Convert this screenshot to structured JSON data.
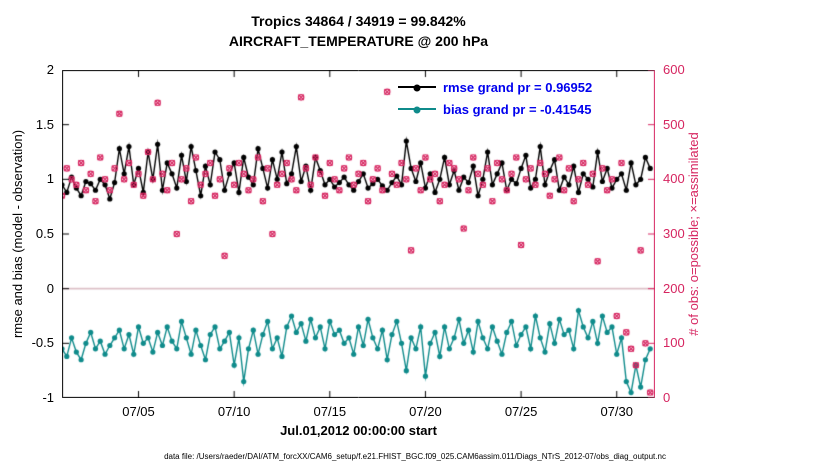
{
  "title": {
    "line1": "Tropics 34864 / 34919 = 99.842%",
    "line2": "AIRCRAFT_TEMPERATURE @ 200 hPa"
  },
  "colors": {
    "rmse": "#000000",
    "bias": "#0f8b8b",
    "obs": "#d62560",
    "legend_text": "#0000ee",
    "zero_line": "#ddc0c7"
  },
  "legend": [
    {
      "series": "rmse",
      "label": "rmse grand pr = 0.96952"
    },
    {
      "series": "bias",
      "label": "bias grand pr = -0.41545"
    }
  ],
  "footer": "data file: /Users/raeder/DAI/ATM_forcXX/CAM6_setup/f.e21.FHIST_BGC.f09_025.CAM6assim.011/Diags_NTrS_2012-07/obs_diag_output.nc",
  "chart_data": {
    "type": "line",
    "title": "Tropics 34864 / 34919 = 99.842% — AIRCRAFT_TEMPERATURE @ 200 hPa",
    "xlabel": "Jul.01,2012 00:00:00 start",
    "x_unit": "days since 2012-07-01 00:00 (6-hourly samples)",
    "x_step_days": 0.25,
    "x_range_days": [
      0,
      31
    ],
    "x_ticks": [
      {
        "day": 4,
        "label": "07/05"
      },
      {
        "day": 9,
        "label": "07/10"
      },
      {
        "day": 14,
        "label": "07/15"
      },
      {
        "day": 19,
        "label": "07/20"
      },
      {
        "day": 24,
        "label": "07/25"
      },
      {
        "day": 29,
        "label": "07/30"
      }
    ],
    "left_axis": {
      "label": "rmse and bias (model - observation)",
      "range": [
        -1,
        2
      ],
      "tick_values": [
        2,
        1.5,
        1,
        0.5,
        0,
        -0.5,
        -1
      ],
      "tick_labels": [
        "2",
        "1.5",
        "1",
        "0.5",
        "0",
        "-0.5",
        "-1"
      ]
    },
    "right_axis": {
      "label": "# of obs: o=possible; ×=assimilated",
      "range": [
        0,
        600
      ],
      "tick_values": [
        600,
        500,
        400,
        300,
        200,
        100,
        0
      ],
      "tick_labels": [
        "600",
        "500",
        "400",
        "300",
        "200",
        "100",
        "0"
      ]
    },
    "legend_position": "top-right",
    "series": [
      {
        "name": "rmse",
        "axis": "left",
        "marker": "dot-line",
        "grand_pr": 0.96952,
        "values": [
          0.95,
          0.88,
          1.02,
          0.92,
          0.85,
          0.98,
          0.96,
          0.9,
          1.0,
          0.95,
          0.82,
          0.97,
          1.28,
          1.05,
          1.3,
          0.95,
          1.1,
          0.88,
          1.25,
          1.0,
          1.32,
          0.9,
          1.15,
          1.05,
          0.92,
          1.22,
          0.98,
          1.3,
          1.08,
          0.85,
          1.12,
          0.95,
          1.25,
          1.18,
          0.9,
          1.05,
          1.15,
          0.88,
          1.2,
          1.02,
          0.95,
          1.28,
          1.1,
          0.92,
          1.18,
          1.0,
          1.25,
          0.96,
          1.05,
          1.3,
          0.98,
          1.12,
          0.9,
          1.2,
          1.08,
          0.95,
          1.0,
          0.93,
          0.97,
          1.02,
          0.95,
          0.9,
          0.98,
          1.05,
          0.92,
          0.96,
          1.0,
          0.94,
          0.9,
          0.97,
          1.03,
          0.95,
          1.35,
          1.1,
          0.98,
          1.15,
          0.92,
          1.05,
          0.88,
          1.0,
          1.2,
          0.95,
          1.08,
          0.9,
          1.02,
          0.97,
          1.12,
          0.85,
          1.0,
          1.25,
          0.95,
          1.05,
          1.15,
          0.9,
          1.0,
          0.96,
          1.1,
          1.22,
          0.92,
          1.0,
          1.3,
          0.95,
          1.08,
          1.18,
          0.9,
          1.02,
          0.95,
          1.12,
          0.88,
          1.05,
          1.0,
          0.93,
          1.25,
          0.98,
          1.1,
          0.92,
          1.0,
          1.05,
          0.9,
          1.15,
          0.95,
          1.0,
          1.2,
          1.1
        ]
      },
      {
        "name": "bias",
        "axis": "left",
        "marker": "dot-line",
        "grand_pr": -0.41545,
        "values": [
          -0.55,
          -0.62,
          -0.45,
          -0.58,
          -0.65,
          -0.5,
          -0.4,
          -0.55,
          -0.48,
          -0.6,
          -0.52,
          -0.45,
          -0.38,
          -0.55,
          -0.42,
          -0.6,
          -0.35,
          -0.5,
          -0.45,
          -0.58,
          -0.4,
          -0.52,
          -0.35,
          -0.48,
          -0.55,
          -0.3,
          -0.45,
          -0.6,
          -0.38,
          -0.52,
          -0.65,
          -0.42,
          -0.35,
          -0.55,
          -0.48,
          -0.4,
          -0.7,
          -0.45,
          -0.85,
          -0.55,
          -0.38,
          -0.6,
          -0.42,
          -0.3,
          -0.55,
          -0.45,
          -0.62,
          -0.35,
          -0.25,
          -0.4,
          -0.32,
          -0.48,
          -0.28,
          -0.45,
          -0.35,
          -0.55,
          -0.3,
          -0.42,
          -0.38,
          -0.5,
          -0.45,
          -0.6,
          -0.35,
          -0.52,
          -0.28,
          -0.45,
          -0.55,
          -0.38,
          -0.65,
          -0.42,
          -0.3,
          -0.5,
          -0.75,
          -0.45,
          -0.55,
          -0.35,
          -0.8,
          -0.5,
          -0.4,
          -0.62,
          -0.35,
          -0.55,
          -0.45,
          -0.28,
          -0.5,
          -0.38,
          -0.58,
          -0.3,
          -0.45,
          -0.55,
          -0.35,
          -0.48,
          -0.6,
          -0.4,
          -0.3,
          -0.52,
          -0.42,
          -0.35,
          -0.55,
          -0.25,
          -0.45,
          -0.58,
          -0.32,
          -0.5,
          -0.28,
          -0.42,
          -0.38,
          -0.55,
          -0.2,
          -0.35,
          -0.45,
          -0.3,
          -0.5,
          -0.25,
          -0.4,
          -0.35,
          -0.6,
          -0.45,
          -0.85,
          -0.95,
          -0.7,
          -0.9,
          -0.65,
          -0.55
        ]
      },
      {
        "name": "obs_assimilated",
        "axis": "right",
        "marker": "o+x",
        "values": [
          370,
          420,
          400,
          390,
          430,
          380,
          410,
          360,
          440,
          400,
          380,
          420,
          520,
          400,
          430,
          390,
          410,
          370,
          450,
          400,
          540,
          410,
          380,
          430,
          300,
          400,
          420,
          360,
          440,
          390,
          410,
          430,
          370,
          400,
          260,
          420,
          390,
          430,
          410,
          380,
          400,
          440,
          360,
          420,
          300,
          390,
          410,
          430,
          400,
          380,
          550,
          420,
          390,
          440,
          410,
          370,
          430,
          400,
          380,
          420,
          440,
          390,
          410,
          430,
          360,
          400,
          420,
          380,
          560,
          410,
          390,
          430,
          400,
          270,
          420,
          380,
          440,
          400,
          410,
          360,
          390,
          430,
          420,
          400,
          310,
          380,
          440,
          410,
          390,
          420,
          360,
          430,
          400,
          380,
          410,
          440,
          280,
          400,
          420,
          390,
          430,
          410,
          370,
          400,
          440,
          380,
          420,
          360,
          400,
          430,
          390,
          410,
          250,
          420,
          380,
          400,
          150,
          430,
          120,
          90,
          60,
          270,
          100,
          10
        ]
      }
    ]
  }
}
